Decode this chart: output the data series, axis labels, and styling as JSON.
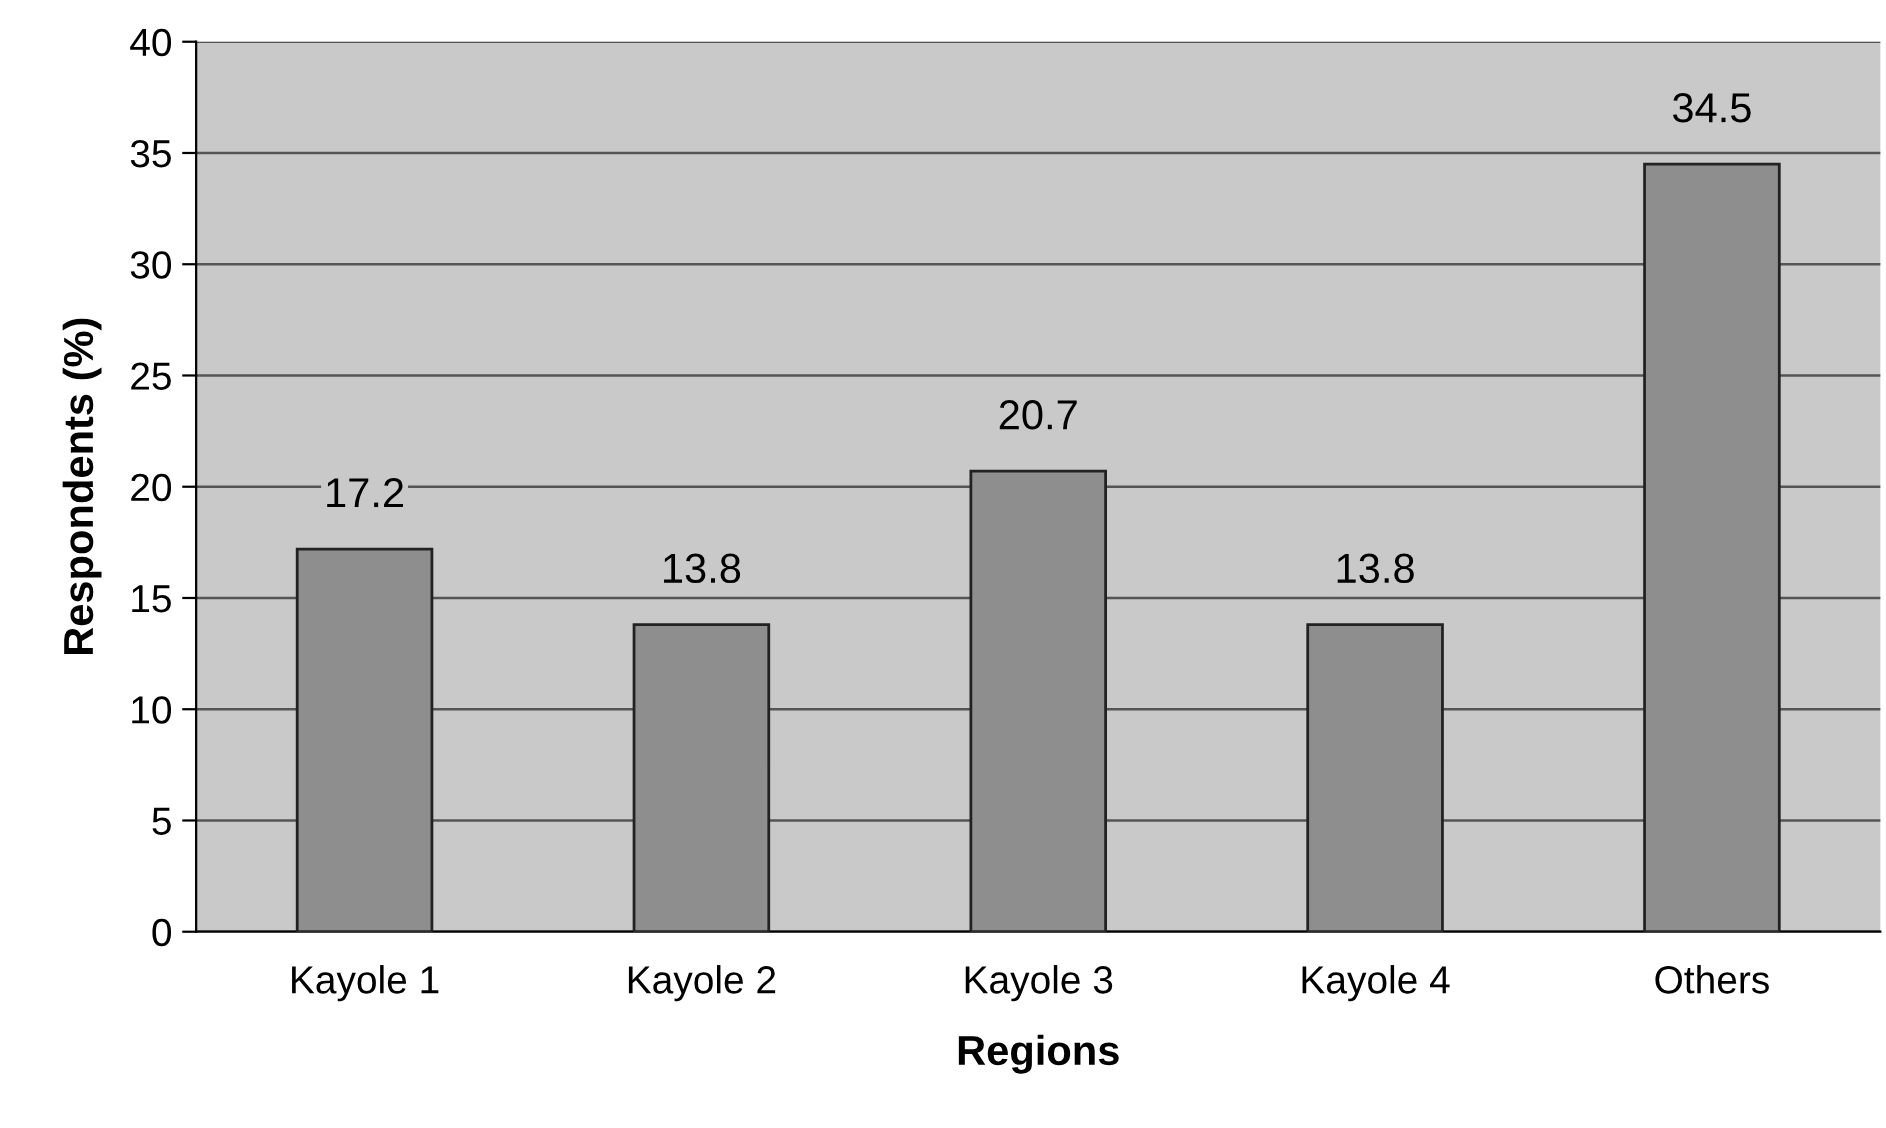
{
  "chart_data": {
    "type": "bar",
    "xlabel": "Regions",
    "ylabel": "Respondents (%)",
    "categories": [
      "Kayole 1",
      "Kayole 2",
      "Kayole 3",
      "Kayole 4",
      "Others"
    ],
    "values": [
      17.2,
      13.8,
      20.7,
      13.8,
      34.5
    ],
    "color": "#8e8e8e",
    "ylim": [
      0,
      40
    ],
    "yticks": [
      0,
      5,
      10,
      15,
      20,
      25,
      30,
      35,
      40
    ],
    "grid": "y",
    "data_labels": true
  }
}
